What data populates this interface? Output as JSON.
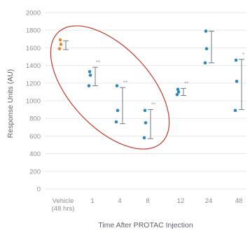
{
  "chart_data": {
    "type": "scatter",
    "title": "",
    "xlabel": "Time After PROTAC Injection",
    "ylabel": "Response Units (AU)",
    "ylim": [
      0,
      2000
    ],
    "yticks": [
      0,
      200,
      400,
      600,
      800,
      1000,
      1200,
      1400,
      1600,
      1800,
      2000
    ],
    "grid": true,
    "categories": [
      "Vehicle (48 hrs)",
      "1",
      "4",
      "8",
      "12",
      "24",
      "48"
    ],
    "category_lines": [
      [
        "Vehicle",
        "(48 hrs)"
      ],
      [
        "1"
      ],
      [
        "4"
      ],
      [
        "8"
      ],
      [
        "12"
      ],
      [
        "24"
      ],
      [
        "48"
      ]
    ],
    "groups": [
      {
        "category": "Vehicle (48 hrs)",
        "points": [
          1690,
          1640,
          1590
        ],
        "range": [
          1580,
          1680
        ],
        "significance": "",
        "color": "#e58a2c"
      },
      {
        "category": "1",
        "points": [
          1330,
          1290,
          1170
        ],
        "range": [
          1170,
          1380
        ],
        "significance": "**",
        "color": "#2f86b8"
      },
      {
        "category": "4",
        "points": [
          1170,
          890,
          760
        ],
        "range": [
          740,
          1150
        ],
        "significance": "**",
        "color": "#2f86b8"
      },
      {
        "category": "8",
        "points": [
          890,
          750,
          580
        ],
        "range": [
          570,
          900
        ],
        "significance": "**",
        "color": "#2f86b8"
      },
      {
        "category": "12",
        "points": [
          1130,
          1100,
          1070
        ],
        "range": [
          1060,
          1140
        ],
        "significance": "**",
        "color": "#2f86b8"
      },
      {
        "category": "24",
        "points": [
          1790,
          1590,
          1430
        ],
        "range": [
          1430,
          1790
        ],
        "significance": "",
        "color": "#2f86b8"
      },
      {
        "category": "48",
        "points": [
          1460,
          1220,
          890
        ],
        "range": [
          900,
          1470
        ],
        "significance": "*",
        "color": "#2f86b8"
      }
    ],
    "annotation": "ellipse highlighting Vehicle to 8",
    "colors": {
      "ellipse": "#c0392b",
      "errorbar": "#6f7a86"
    }
  }
}
